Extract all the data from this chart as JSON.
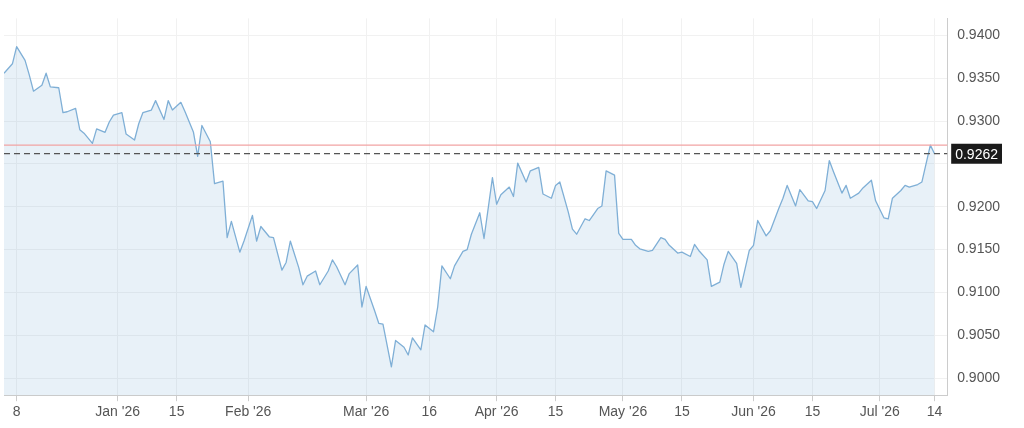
{
  "chart_data": {
    "type": "area",
    "x": [
      "2025-12-05",
      "2025-12-07",
      "2025-12-08",
      "2025-12-10",
      "2025-12-11",
      "2025-12-12",
      "2025-12-14",
      "2025-12-15",
      "2025-12-16",
      "2025-12-18",
      "2025-12-19",
      "2025-12-20",
      "2025-12-22",
      "2025-12-23",
      "2025-12-24",
      "2025-12-26",
      "2025-12-27",
      "2025-12-29",
      "2025-12-30",
      "2025-12-31",
      "2026-01-02",
      "2026-01-03",
      "2026-01-05",
      "2026-01-06",
      "2026-01-07",
      "2026-01-09",
      "2026-01-10",
      "2026-01-12",
      "2026-01-13",
      "2026-01-14",
      "2026-01-16",
      "2026-01-17",
      "2026-01-19",
      "2026-01-20",
      "2026-01-21",
      "2026-01-23",
      "2026-01-24",
      "2026-01-26",
      "2026-01-27",
      "2026-01-28",
      "2026-01-30",
      "2026-01-31",
      "2026-02-02",
      "2026-02-03",
      "2026-02-04",
      "2026-02-06",
      "2026-02-07",
      "2026-02-09",
      "2026-02-10",
      "2026-02-11",
      "2026-02-13",
      "2026-02-14",
      "2026-02-15",
      "2026-02-17",
      "2026-02-18",
      "2026-02-20",
      "2026-02-21",
      "2026-02-22",
      "2026-02-24",
      "2026-02-25",
      "2026-02-27",
      "2026-02-28",
      "2026-03-01",
      "2026-03-03",
      "2026-03-04",
      "2026-03-05",
      "2026-03-07",
      "2026-03-08",
      "2026-03-10",
      "2026-03-11",
      "2026-03-12",
      "2026-03-14",
      "2026-03-15",
      "2026-03-17",
      "2026-03-18",
      "2026-03-19",
      "2026-03-21",
      "2026-03-22",
      "2026-03-24",
      "2026-03-25",
      "2026-03-26",
      "2026-03-28",
      "2026-03-29",
      "2026-03-31",
      "2026-04-01",
      "2026-04-02",
      "2026-04-04",
      "2026-04-05",
      "2026-04-06",
      "2026-04-08",
      "2026-04-09",
      "2026-04-11",
      "2026-04-12",
      "2026-04-14",
      "2026-04-15",
      "2026-04-16",
      "2026-04-18",
      "2026-04-19",
      "2026-04-20",
      "2026-04-22",
      "2026-04-23",
      "2026-04-25",
      "2026-04-26",
      "2026-04-27",
      "2026-04-29",
      "2026-04-30",
      "2026-05-01",
      "2026-05-03",
      "2026-05-04",
      "2026-05-05",
      "2026-05-07",
      "2026-05-08",
      "2026-05-10",
      "2026-05-11",
      "2026-05-12",
      "2026-05-14",
      "2026-05-15",
      "2026-05-17",
      "2026-05-18",
      "2026-05-19",
      "2026-05-21",
      "2026-05-22",
      "2026-05-24",
      "2026-05-25",
      "2026-05-26",
      "2026-05-28",
      "2026-05-29",
      "2026-05-31",
      "2026-06-01",
      "2026-06-02",
      "2026-06-04",
      "2026-06-05",
      "2026-06-07",
      "2026-06-08",
      "2026-06-09",
      "2026-06-11",
      "2026-06-12",
      "2026-06-14",
      "2026-06-15",
      "2026-06-16",
      "2026-06-18",
      "2026-06-19",
      "2026-06-20",
      "2026-06-22",
      "2026-06-23",
      "2026-06-24",
      "2026-06-26",
      "2026-06-27",
      "2026-06-29",
      "2026-06-30",
      "2026-07-02",
      "2026-07-03",
      "2026-07-04",
      "2026-07-06",
      "2026-07-07",
      "2026-07-08",
      "2026-07-10",
      "2026-07-11",
      "2026-07-13",
      "2026-07-14"
    ],
    "series": [
      {
        "color": "#7fafd6",
        "values": [
          0.9356,
          0.9367,
          0.9387,
          0.9371,
          0.9354,
          0.9335,
          0.9342,
          0.9356,
          0.934,
          0.9339,
          0.931,
          0.9311,
          0.9315,
          0.929,
          0.9286,
          0.9274,
          0.9291,
          0.9287,
          0.9299,
          0.9307,
          0.931,
          0.9285,
          0.9278,
          0.9297,
          0.931,
          0.9313,
          0.9324,
          0.9302,
          0.9324,
          0.9313,
          0.9322,
          0.9311,
          0.9287,
          0.9259,
          0.9295,
          0.9276,
          0.9227,
          0.923,
          0.9164,
          0.9183,
          0.9147,
          0.916,
          0.919,
          0.916,
          0.9177,
          0.9165,
          0.9164,
          0.9126,
          0.9135,
          0.916,
          0.9129,
          0.9109,
          0.9119,
          0.9125,
          0.9109,
          0.9125,
          0.9138,
          0.913,
          0.9109,
          0.9122,
          0.9132,
          0.9083,
          0.9107,
          0.9079,
          0.9064,
          0.9063,
          0.9013,
          0.9044,
          0.9036,
          0.9027,
          0.9047,
          0.9033,
          0.9062,
          0.9054,
          0.9083,
          0.9131,
          0.9116,
          0.9131,
          0.9148,
          0.915,
          0.9168,
          0.9193,
          0.9163,
          0.9234,
          0.9203,
          0.9214,
          0.9223,
          0.9212,
          0.9251,
          0.9229,
          0.9242,
          0.9246,
          0.9215,
          0.921,
          0.9225,
          0.9229,
          0.9194,
          0.9174,
          0.9168,
          0.9186,
          0.9184,
          0.9198,
          0.9201,
          0.9242,
          0.9237,
          0.9169,
          0.9162,
          0.9162,
          0.9155,
          0.9151,
          0.9148,
          0.9149,
          0.9164,
          0.9162,
          0.9155,
          0.9146,
          0.9147,
          0.9142,
          0.9156,
          0.9149,
          0.9138,
          0.9107,
          0.9112,
          0.9133,
          0.9148,
          0.9134,
          0.9106,
          0.9149,
          0.9155,
          0.9184,
          0.9166,
          0.9172,
          0.9198,
          0.921,
          0.9225,
          0.9201,
          0.922,
          0.9207,
          0.9206,
          0.9198,
          0.9219,
          0.9254,
          0.9241,
          0.9216,
          0.9225,
          0.921,
          0.9216,
          0.9222,
          0.9231,
          0.9207,
          0.9187,
          0.9186,
          0.921,
          0.9219,
          0.9225,
          0.9223,
          0.9226,
          0.9229,
          0.9272,
          0.9262
        ]
      }
    ],
    "xlim": [
      "2025-12-05",
      "2026-07-17"
    ],
    "xticks": [
      {
        "value": "2025-12-08",
        "label": "8"
      },
      {
        "value": "2026-01-01",
        "label": "Jan '26"
      },
      {
        "value": "2026-01-15",
        "label": "15"
      },
      {
        "value": "2026-02-01",
        "label": "Feb '26"
      },
      {
        "value": "2026-03-01",
        "label": "Mar '26"
      },
      {
        "value": "2026-03-16",
        "label": "16"
      },
      {
        "value": "2026-04-01",
        "label": "Apr '26"
      },
      {
        "value": "2026-04-15",
        "label": "15"
      },
      {
        "value": "2026-05-01",
        "label": "May '26"
      },
      {
        "value": "2026-05-15",
        "label": "15"
      },
      {
        "value": "2026-06-01",
        "label": "Jun '26"
      },
      {
        "value": "2026-06-15",
        "label": "15"
      },
      {
        "value": "2026-07-01",
        "label": "Jul '26"
      },
      {
        "value": "2026-07-14",
        "label": "14"
      }
    ],
    "ylim": [
      0.898,
      0.942
    ],
    "yticks": [
      {
        "value": 0.9,
        "label": "0.9000"
      },
      {
        "value": 0.905,
        "label": "0.9050"
      },
      {
        "value": 0.91,
        "label": "0.9100"
      },
      {
        "value": 0.915,
        "label": "0.9150"
      },
      {
        "value": 0.92,
        "label": "0.9200"
      },
      {
        "value": 0.925,
        "label": null
      },
      {
        "value": 0.93,
        "label": "0.9300"
      },
      {
        "value": 0.935,
        "label": "0.9350"
      },
      {
        "value": 0.94,
        "label": "0.9400"
      }
    ],
    "ref_lines": [
      {
        "axis": "y",
        "value": 0.9272,
        "color": "#f2a3a3",
        "line_style": "solid"
      },
      {
        "axis": "y",
        "value": 0.9262,
        "label": "0.9262",
        "color": "#555555",
        "line_style": "dashed"
      }
    ],
    "grid": true,
    "marker": "none",
    "line_style": "solid"
  }
}
